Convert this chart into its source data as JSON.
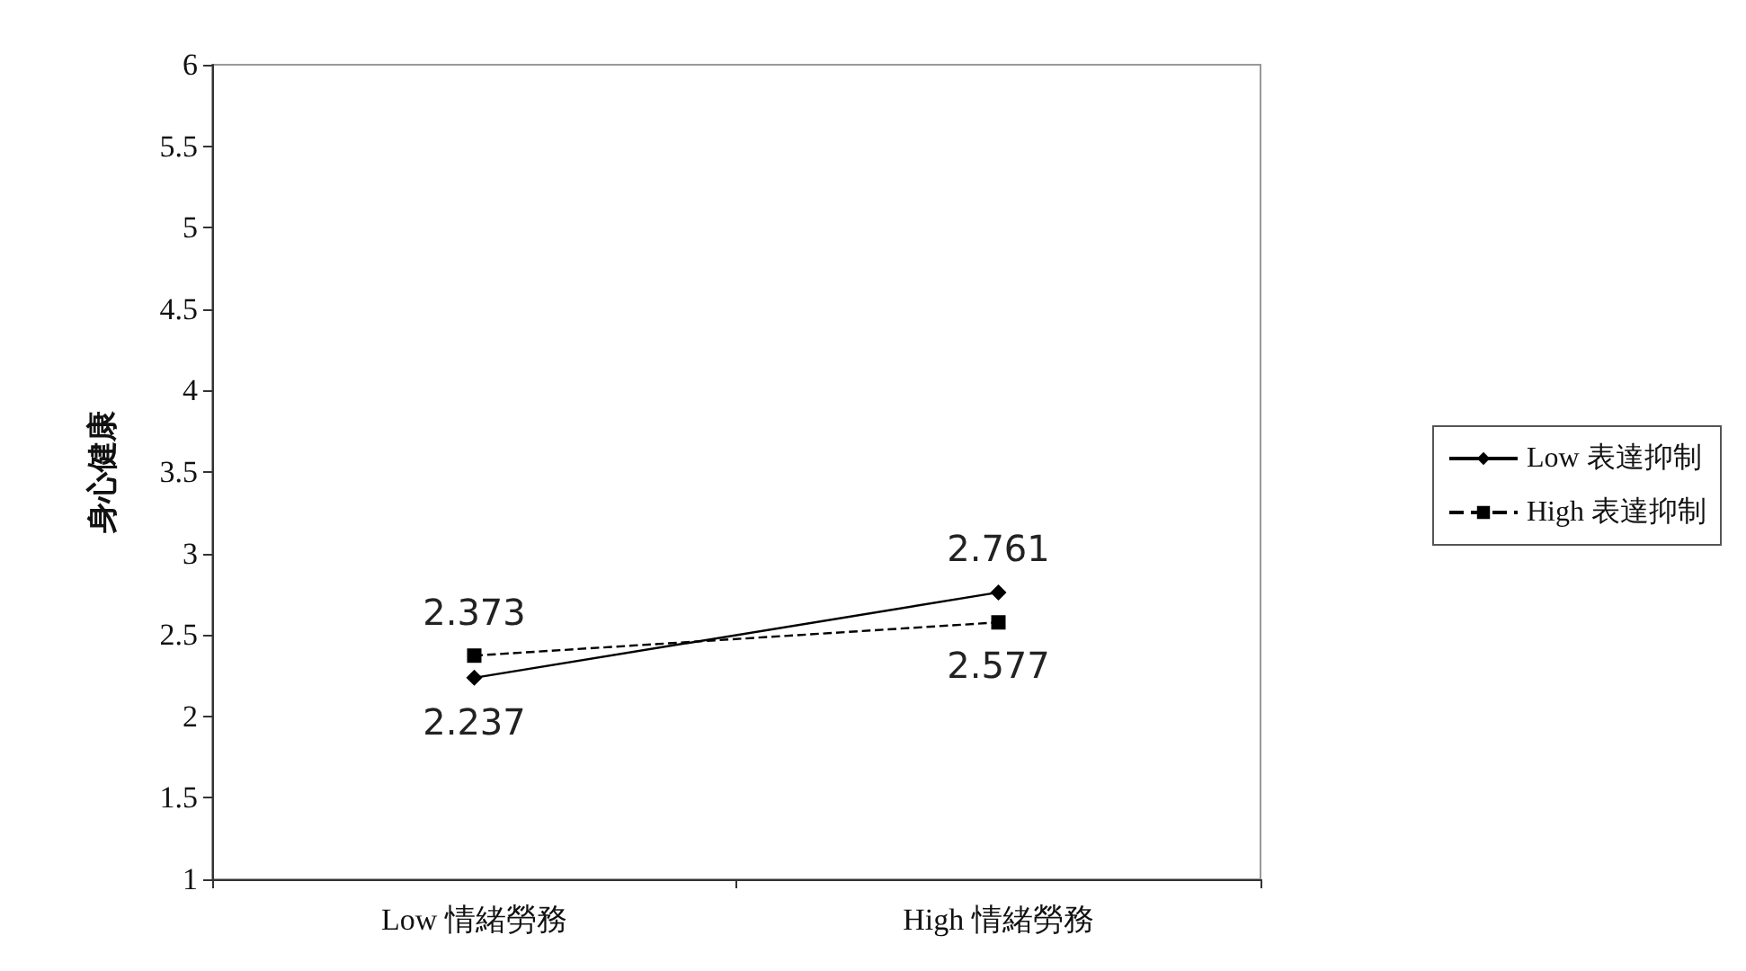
{
  "chart_data": {
    "type": "line",
    "ylabel": "身心健康",
    "categories": [
      "Low 情緒勞務",
      "High 情緒勞務"
    ],
    "series": [
      {
        "name": "Low 表達抑制",
        "color": "#000000",
        "values": [
          2.237,
          2.761
        ],
        "marker": "diamond",
        "line_style": "solid"
      },
      {
        "name": "High 表達抑制",
        "color": "#000000",
        "values": [
          2.373,
          2.577
        ],
        "marker": "square",
        "line_style": "dashed"
      }
    ],
    "ylim": [
      1,
      6
    ],
    "yticks": [
      1,
      1.5,
      2,
      2.5,
      3,
      3.5,
      4,
      4.5,
      5,
      5.5,
      6
    ],
    "grid": false,
    "legend": "right",
    "data_labels": true
  }
}
